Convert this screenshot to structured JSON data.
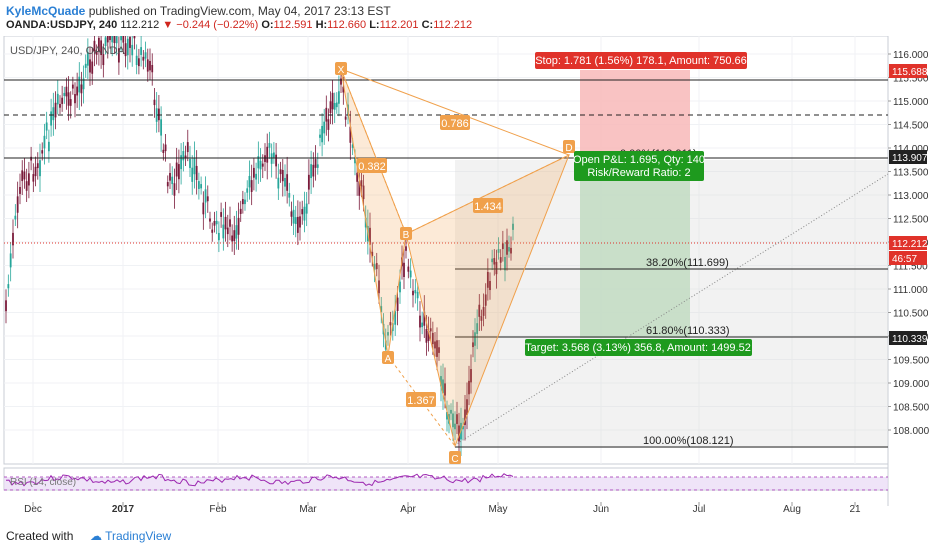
{
  "header": {
    "author": "KyleMcQuade",
    "published": "published on TradingView.com, May 04, 2017 23:13 EST",
    "symbol": "OANDA:USDJPY, 240",
    "price": "112.212",
    "change": "−0.244 (−0.22%)",
    "o_label": "O:",
    "o": "112.591",
    "h_label": "H:",
    "h": "112.660",
    "l_label": "L:",
    "l": "112.201",
    "c_label": "C:",
    "c": "112.212"
  },
  "chart_title": "USD/JPY, 240, OANDA",
  "rsi_label": "RSI (14, close)",
  "footer": {
    "created": "Created with",
    "brand": "TradingView"
  },
  "price_axis": {
    "ticks": [
      "116.000",
      "115.500",
      "115.000",
      "114.500",
      "114.000",
      "113.500",
      "113.000",
      "112.500",
      "112.000",
      "111.500",
      "111.000",
      "110.500",
      "110.000",
      "109.500",
      "109.000",
      "108.500",
      "108.000"
    ],
    "badges": [
      {
        "value": "115.688",
        "color": "#e0322a"
      },
      {
        "value": "113.907",
        "color": "#222222"
      },
      {
        "value": "112.212",
        "color": "#e0322a"
      },
      {
        "value": "46:57",
        "color": "#e0322a"
      },
      {
        "value": "110.339",
        "color": "#222222"
      }
    ]
  },
  "time_axis": [
    "Dec",
    "2017",
    "Feb",
    "Mar",
    "Apr",
    "May",
    "Jun",
    "Jul",
    "Aug",
    "21"
  ],
  "pattern_points": [
    "X",
    "A",
    "B",
    "C",
    "D"
  ],
  "ratios": [
    "0.786",
    "0.382",
    "1.434",
    "1.367"
  ],
  "fib_levels": [
    {
      "label": "0.00%(113.911)"
    },
    {
      "label": "38.20%(111.699)"
    },
    {
      "label": "61.80%(110.333)"
    },
    {
      "label": "100.00%(108.121)"
    }
  ],
  "position": {
    "stop": "Stop: 1.781 (1.56%) 178.1, Amount: 750.66",
    "open_line1": "Open P&L: 1.695, Qty: 140",
    "open_line2": "Risk/Reward Ratio: 2",
    "target": "Target: 3.568 (3.13%) 356.8, Amount: 1499.52"
  },
  "colors": {
    "up": "#26a69a",
    "down": "#7a1a3a",
    "pattern": "#f0a04b",
    "stop": "#f8b9b9",
    "target": "#b6ddb6",
    "red": "#e0322a",
    "green": "#1e9a1e",
    "rsi": "#9c27b0"
  }
}
